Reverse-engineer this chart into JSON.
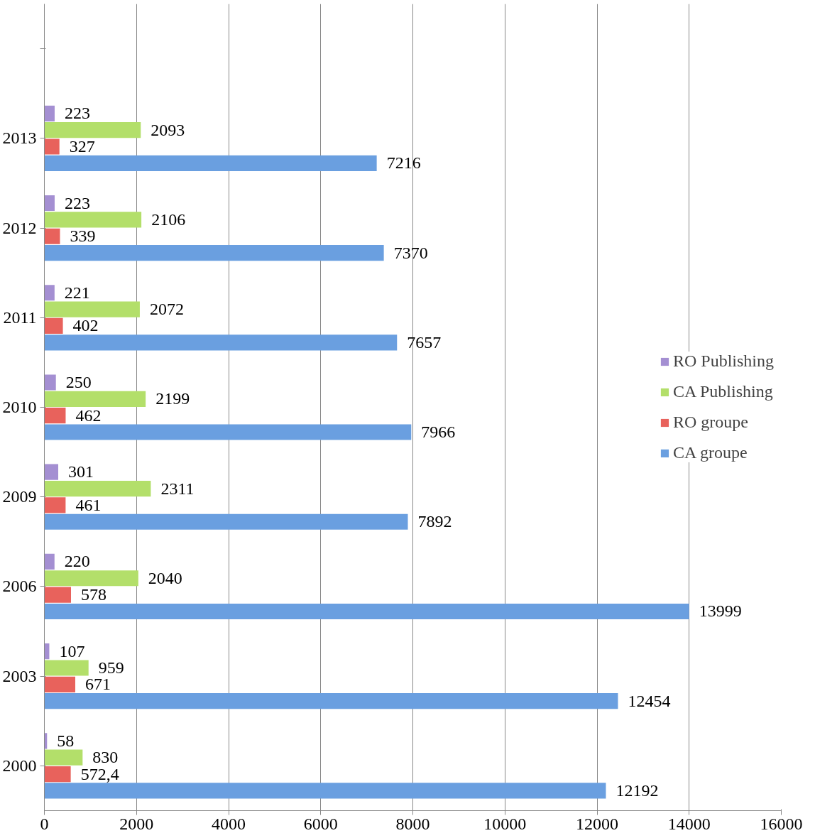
{
  "chart_data": {
    "type": "bar",
    "orientation": "horizontal",
    "categories": [
      null,
      "2013",
      "2012",
      "2011",
      "2010",
      "2009",
      "2006",
      "2003",
      "2000"
    ],
    "series": [
      {
        "name": "CA groupe",
        "color": "#6a9fe0",
        "values": [
          null,
          7216,
          7370,
          7657,
          7966,
          7892,
          13999,
          12454,
          12192
        ],
        "value_labels": [
          null,
          "7216",
          "7370",
          "7657",
          "7966",
          "7892",
          "13999",
          "12454",
          "12192"
        ]
      },
      {
        "name": "RO groupe",
        "color": "#e8625c",
        "values": [
          null,
          327,
          339,
          402,
          462,
          461,
          578,
          671,
          572.4
        ],
        "value_labels": [
          null,
          "327",
          "339",
          "402",
          "462",
          "461",
          "578",
          "671",
          "572,4"
        ]
      },
      {
        "name": "CA Publishing",
        "color": "#b3df6a",
        "values": [
          null,
          2093,
          2106,
          2072,
          2199,
          2311,
          2040,
          959,
          830
        ],
        "value_labels": [
          null,
          "2093",
          "2106",
          "2072",
          "2199",
          "2311",
          "2040",
          "959",
          "830"
        ]
      },
      {
        "name": "RO Publishing",
        "color": "#a48fd2",
        "values": [
          null,
          223,
          223,
          221,
          250,
          301,
          220,
          107,
          58
        ],
        "value_labels": [
          null,
          "223",
          "223",
          "221",
          "250",
          "301",
          "220",
          "107",
          "58"
        ]
      }
    ],
    "xlim": [
      0,
      16000
    ],
    "xticks": [
      0,
      2000,
      4000,
      6000,
      8000,
      10000,
      12000,
      14000,
      16000
    ],
    "grid": "x",
    "legend": "right"
  }
}
